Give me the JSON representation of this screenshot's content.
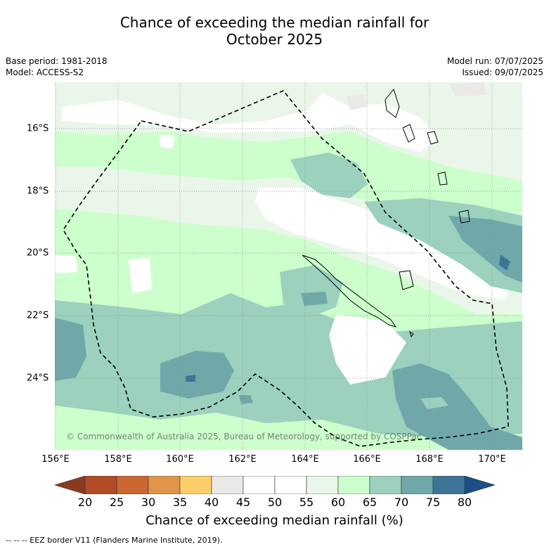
{
  "title_line1": "Chance of exceeding the median rainfall for",
  "title_line2": "October 2025",
  "meta_left": {
    "base_period": "Base period: 1981-2018",
    "model": "Model: ACCESS-S2"
  },
  "meta_right": {
    "model_run": "Model run: 07/07/2025",
    "issued": "Issued: 09/07/2025"
  },
  "lat_labels": [
    "16°S",
    "18°S",
    "20°S",
    "22°S",
    "24°S"
  ],
  "lon_labels": [
    "156°E",
    "158°E",
    "160°E",
    "162°E",
    "164°E",
    "166°E",
    "168°E",
    "170°E"
  ],
  "copyright": "© Commonwealth of Australia 2025, Bureau of Meteorology, supported by COSPPac",
  "colorbar": {
    "ticks": [
      "20",
      "25",
      "30",
      "35",
      "40",
      "45",
      "50",
      "55",
      "60",
      "65",
      "70",
      "75",
      "80"
    ],
    "colors": [
      "#b14c26",
      "#cc6632",
      "#e0964a",
      "#fccf6a",
      "#ebe9e6",
      "#ffffff",
      "#ffffff",
      "#eaf6ea",
      "#ccffcc",
      "#9bd1bd",
      "#70a8aa",
      "#3e7597"
    ],
    "under_color": "#8b3a1f",
    "over_color": "#1b4f86",
    "title": "Chance of exceeding median rainfall (%)"
  },
  "footnote": "--  --  -- EEZ border V11 (Flanders Marine Institute, 2019)."
}
